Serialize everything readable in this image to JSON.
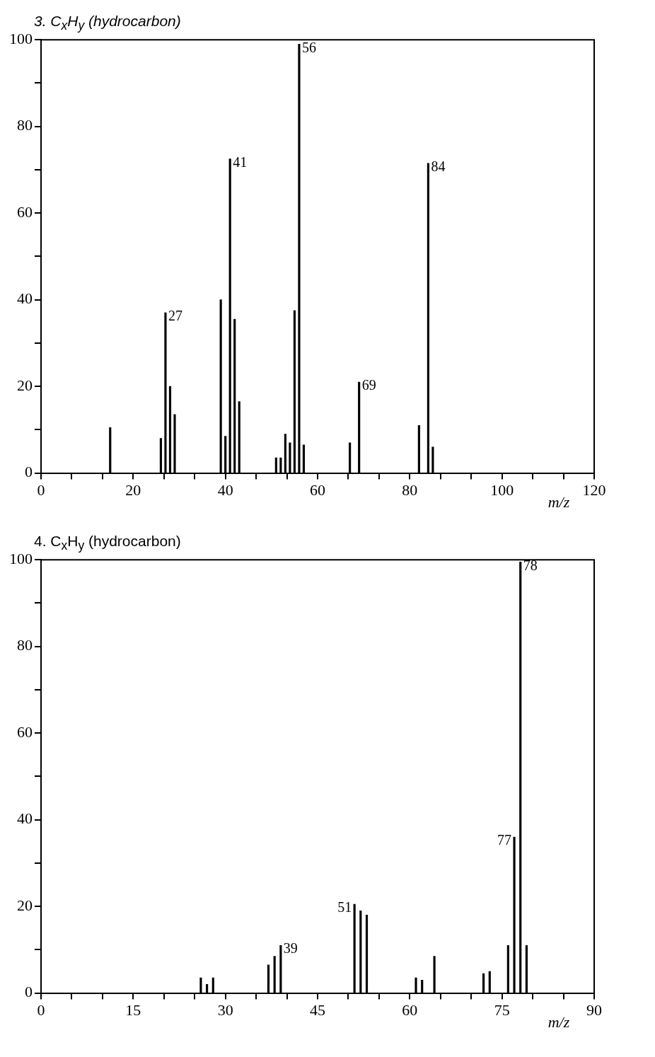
{
  "chart_data": [
    {
      "type": "bar",
      "title": "3. C$_{x}$H$_{y}$ (hydrocarbon)",
      "xlabel": "m/z",
      "x": [
        15,
        26,
        27,
        28,
        29,
        39,
        40,
        41,
        42,
        43,
        51,
        52,
        53,
        54,
        55,
        56,
        57,
        67,
        69,
        82,
        84,
        85
      ],
      "series": [
        {
          "color": "#000000",
          "values": [
            10.5,
            8,
            37,
            20,
            13.5,
            40,
            8.5,
            72.5,
            35.5,
            16.5,
            3.5,
            3.5,
            9,
            7,
            37.5,
            99,
            6.5,
            7,
            21,
            11,
            71.5,
            6
          ]
        }
      ],
      "xlim": [
        0,
        120
      ],
      "xticks": [
        0,
        {
          "value": 6.667,
          "label": null
        },
        {
          "value": 13.333,
          "label": null
        },
        20,
        {
          "value": 26.667,
          "label": null
        },
        {
          "value": 33.333,
          "label": null
        },
        40,
        {
          "value": 46.667,
          "label": null
        },
        {
          "value": 53.333,
          "label": null
        },
        60,
        {
          "value": 66.667,
          "label": null
        },
        {
          "value": 73.333,
          "label": null
        },
        80,
        {
          "value": 86.667,
          "label": null
        },
        {
          "value": 93.333,
          "label": null
        },
        100,
        {
          "value": 106.667,
          "label": null
        },
        {
          "value": 113.333,
          "label": null
        },
        120
      ],
      "ylim": [
        0,
        100
      ],
      "yticks": [
        0,
        {
          "value": 10,
          "label": null
        },
        20,
        {
          "value": 30,
          "label": null
        },
        40,
        {
          "value": 50,
          "label": null
        },
        60,
        {
          "value": 70,
          "label": null
        },
        80,
        {
          "value": 90,
          "label": null
        },
        100
      ],
      "grid": false,
      "legend": false,
      "annotations": [
        {
          "text": "27",
          "x": 27,
          "y": 37
        },
        {
          "text": "41",
          "x": 41,
          "y": 72.5
        },
        {
          "text": "56",
          "x": 56,
          "y": 99
        },
        {
          "text": "69",
          "x": 69,
          "y": 21
        },
        {
          "text": "84",
          "x": 84,
          "y": 71.5
        }
      ]
    },
    {
      "type": "bar",
      "title": "4. C$_{x}$H$_{y}$ (hydrocarbon)",
      "xlabel": "m/z",
      "x": [
        26,
        27,
        28,
        37,
        38,
        39,
        51,
        52,
        53,
        61,
        62,
        64,
        72,
        73,
        76,
        77,
        78,
        79
      ],
      "series": [
        {
          "color": "#000000",
          "values": [
            3.5,
            2,
            3.5,
            6.5,
            8.5,
            11,
            20.5,
            19,
            18,
            3.5,
            3,
            8.5,
            4.5,
            5,
            11,
            36,
            99.5,
            11
          ]
        }
      ],
      "xlim": [
        0,
        90
      ],
      "xticks": [
        0,
        {
          "value": 5,
          "label": null
        },
        {
          "value": 10,
          "label": null
        },
        15,
        {
          "value": 20,
          "label": null
        },
        {
          "value": 25,
          "label": null
        },
        30,
        {
          "value": 35,
          "label": null
        },
        {
          "value": 40,
          "label": null
        },
        45,
        {
          "value": 50,
          "label": null
        },
        {
          "value": 55,
          "label": null
        },
        60,
        {
          "value": 65,
          "label": null
        },
        {
          "value": 70,
          "label": null
        },
        75,
        {
          "value": 80,
          "label": null
        },
        {
          "value": 85,
          "label": null
        },
        90
      ],
      "ylim": [
        0,
        100
      ],
      "yticks": [
        0,
        {
          "value": 10,
          "label": null
        },
        20,
        {
          "value": 30,
          "label": null
        },
        40,
        {
          "value": 50,
          "label": null
        },
        60,
        {
          "value": 70,
          "label": null
        },
        80,
        {
          "value": 90,
          "label": null
        },
        100
      ],
      "grid": false,
      "legend": false,
      "annotations": [
        {
          "text": "39",
          "x": 39,
          "y": 11
        },
        {
          "text": "51",
          "x": 51,
          "y": 20.5
        },
        {
          "text": "77",
          "x": 77,
          "y": 36
        },
        {
          "text": "78",
          "x": 78,
          "y": 99.5
        }
      ]
    }
  ]
}
